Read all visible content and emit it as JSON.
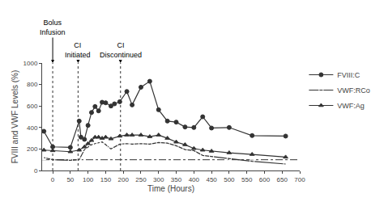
{
  "chart_data": {
    "type": "line",
    "xlabel": "Time (Hours)",
    "ylabel": "FVIII and VWF Levels (%)",
    "xlim": [
      -30,
      700
    ],
    "ylim": [
      0,
      1000
    ],
    "xticks": [
      0,
      50,
      100,
      150,
      200,
      250,
      300,
      350,
      400,
      450,
      500,
      550,
      600,
      650,
      700
    ],
    "yticks": [
      0,
      200,
      400,
      600,
      800,
      1000
    ],
    "grid": false,
    "legend": "right",
    "series": [
      {
        "name": "FVIII:C",
        "color": "#333333",
        "marker": "circle",
        "x": [
          -25,
          0,
          50,
          75,
          80,
          90,
          100,
          110,
          120,
          130,
          140,
          150,
          165,
          175,
          190,
          210,
          225,
          250,
          275,
          300,
          325,
          350,
          375,
          400,
          425,
          450,
          500,
          565,
          660
        ],
        "values": [
          365,
          220,
          215,
          460,
          310,
          290,
          420,
          540,
          595,
          555,
          635,
          630,
          600,
          620,
          640,
          735,
          610,
          775,
          830,
          565,
          460,
          450,
          405,
          400,
          500,
          395,
          400,
          325,
          320
        ]
      },
      {
        "name": "VWF:RCo",
        "color": "#333333",
        "marker": "square-open",
        "x": [
          -25,
          0,
          50,
          75,
          90,
          100,
          110,
          120,
          130,
          140,
          150,
          165,
          190,
          210,
          225,
          250,
          275,
          300,
          325,
          350,
          375,
          400,
          425,
          450,
          500,
          565,
          660
        ],
        "values": [
          120,
          100,
          95,
          100,
          195,
          215,
          240,
          250,
          255,
          265,
          240,
          200,
          245,
          250,
          245,
          250,
          245,
          260,
          255,
          230,
          195,
          185,
          140,
          130,
          115,
          85,
          60
        ]
      },
      {
        "name": "VWF:Ag",
        "color": "#333333",
        "marker": "triangle-up",
        "x": [
          -25,
          0,
          50,
          75,
          90,
          100,
          110,
          120,
          130,
          140,
          150,
          165,
          190,
          210,
          225,
          250,
          275,
          300,
          325,
          350,
          375,
          400,
          425,
          450,
          500,
          565,
          660
        ],
        "values": [
          190,
          185,
          175,
          190,
          220,
          250,
          280,
          310,
          310,
          300,
          310,
          295,
          320,
          330,
          330,
          330,
          315,
          330,
          300,
          265,
          240,
          205,
          190,
          180,
          165,
          150,
          125
        ]
      }
    ],
    "hlines": [
      {
        "y": 100,
        "color": "#333333",
        "line_style": "dashdot"
      }
    ],
    "vlines": [
      {
        "x": 0,
        "color": "#555555",
        "line_style": "dot"
      },
      {
        "x": 72,
        "color": "#555555",
        "line_style": "dot"
      },
      {
        "x": 192,
        "color": "#555555",
        "line_style": "dot"
      }
    ],
    "annotations": [
      {
        "x": 0,
        "text": "Bolus\nInfusion"
      },
      {
        "x": 72,
        "text": "CI\nInitiated"
      },
      {
        "x": 192,
        "text": "CI\nDiscontinued"
      }
    ]
  }
}
